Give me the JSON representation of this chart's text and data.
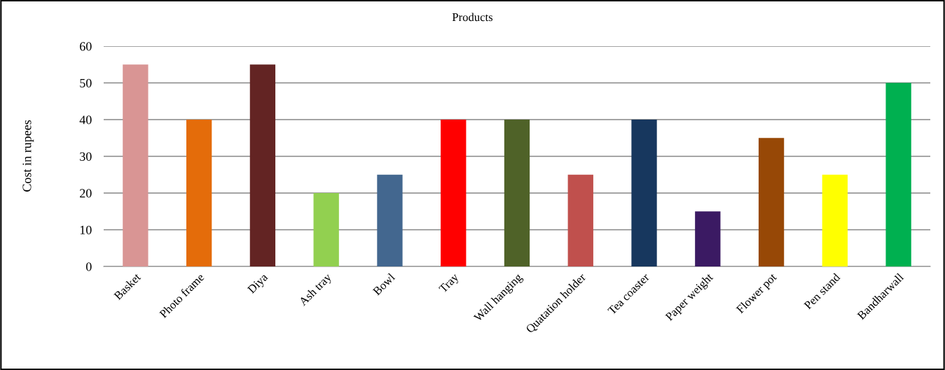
{
  "chart_data": {
    "type": "bar",
    "title": "Products",
    "ylabel": "Cost in rupees",
    "categories": [
      "Basket",
      "Photo frame",
      "Diya",
      "Ash tray",
      "Bowl",
      "Tray",
      "Wall hanging",
      "Quatation holder",
      "Tea coaster",
      "Paper weight",
      "Flower pot",
      "Pen stand",
      "Bandharwall"
    ],
    "values": [
      55,
      40,
      55,
      20,
      25,
      40,
      40,
      25,
      40,
      15,
      35,
      25,
      50
    ],
    "colors": [
      "#d99594",
      "#e46c0a",
      "#632423",
      "#92d050",
      "#43678f",
      "#ff0000",
      "#4f6228",
      "#c0504d",
      "#17375e",
      "#3b1a63",
      "#974806",
      "#ffff00",
      "#00b050"
    ],
    "ylim": [
      0,
      60
    ],
    "yticks": [
      0,
      10,
      20,
      30,
      40,
      50,
      60
    ],
    "grid": "y",
    "legend": false
  }
}
